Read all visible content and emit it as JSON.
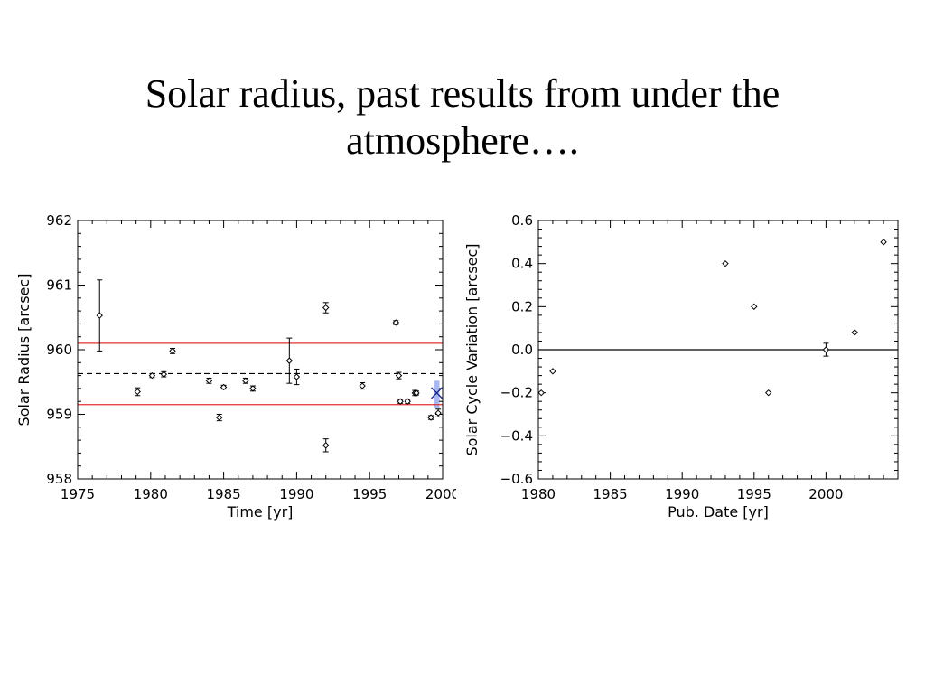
{
  "slide": {
    "title_line1": "Solar radius, past results from under the",
    "title_line2": "atmosphere…."
  },
  "chart_data": [
    {
      "type": "scatter",
      "title": "",
      "xlabel": "Time [yr]",
      "ylabel": "Solar Radius [arcsec]",
      "xlim": [
        1975,
        2000
      ],
      "ylim": [
        958,
        962
      ],
      "x_ticks": [
        1975,
        1980,
        1985,
        1990,
        1995,
        2000
      ],
      "x_tick_labels": [
        "1975",
        "1980",
        "1985",
        "1990",
        "1995",
        "2000"
      ],
      "y_ticks": [
        958,
        959,
        960,
        961,
        962
      ],
      "y_tick_labels": [
        "958",
        "959",
        "960",
        "961",
        "962"
      ],
      "grid": false,
      "reference_lines": [
        {
          "y": 960.1,
          "style": "solid",
          "color": "#e03030"
        },
        {
          "y": 959.63,
          "style": "dashed",
          "color": "#000000"
        },
        {
          "y": 959.15,
          "style": "solid",
          "color": "#e03030"
        }
      ],
      "highlight_point": {
        "x": 1999.6,
        "y": 959.33,
        "marker": "x",
        "color": "#1f2a8a",
        "band_color": "#a8b8f0",
        "band_y": [
          959.1,
          959.52
        ]
      },
      "series": [
        {
          "marker": "diamond",
          "points": [
            {
              "x": 1976.5,
              "y": 960.53,
              "err": 0.55
            },
            {
              "x": 1979.1,
              "y": 959.35,
              "err": 0.06
            },
            {
              "x": 1980.1,
              "y": 959.6,
              "err": 0.03
            },
            {
              "x": 1980.9,
              "y": 959.62,
              "err": 0.04
            },
            {
              "x": 1981.5,
              "y": 959.98,
              "err": 0.04
            },
            {
              "x": 1984.0,
              "y": 959.52,
              "err": 0.04
            },
            {
              "x": 1984.7,
              "y": 958.95,
              "err": 0.05
            },
            {
              "x": 1985.0,
              "y": 959.42,
              "err": 0.03
            },
            {
              "x": 1986.5,
              "y": 959.52,
              "err": 0.04
            },
            {
              "x": 1987.0,
              "y": 959.4,
              "err": 0.04
            },
            {
              "x": 1989.5,
              "y": 959.83,
              "err": 0.35
            },
            {
              "x": 1990.0,
              "y": 959.58,
              "err": 0.12
            },
            {
              "x": 1992.0,
              "y": 960.65,
              "err": 0.08
            },
            {
              "x": 1992.0,
              "y": 958.52,
              "err": 0.1
            },
            {
              "x": 1994.5,
              "y": 959.44,
              "err": 0.05
            },
            {
              "x": 1996.8,
              "y": 960.42,
              "err": 0.03
            },
            {
              "x": 1997.0,
              "y": 959.6,
              "err": 0.05
            },
            {
              "x": 1997.1,
              "y": 959.2,
              "err": 0.03
            },
            {
              "x": 1997.6,
              "y": 959.2,
              "err": 0.03
            },
            {
              "x": 1998.1,
              "y": 959.33,
              "err": 0.04
            },
            {
              "x": 1998.2,
              "y": 959.33,
              "err": 0.03
            },
            {
              "x": 1999.2,
              "y": 958.95,
              "err": 0.03
            },
            {
              "x": 1999.7,
              "y": 959.02,
              "err": 0.06
            }
          ]
        }
      ]
    },
    {
      "type": "scatter",
      "title": "",
      "xlabel": "Pub. Date [yr]",
      "ylabel": "Solar Cycle Variation [arcsec]",
      "xlim": [
        1980,
        2005
      ],
      "ylim": [
        -0.6,
        0.6
      ],
      "x_ticks": [
        1980,
        1985,
        1990,
        1995,
        2000
      ],
      "x_tick_labels": [
        "1980",
        "1985",
        "1990",
        "1995",
        "2000"
      ],
      "y_ticks": [
        -0.6,
        -0.4,
        -0.2,
        0.0,
        0.2,
        0.4,
        0.6
      ],
      "y_tick_labels": [
        "−0.6",
        "−0.4",
        "−0.2",
        "0.0",
        "0.2",
        "0.4",
        "0.6"
      ],
      "grid": false,
      "reference_lines": [
        {
          "y": 0.0,
          "style": "solid",
          "color": "#000000"
        }
      ],
      "series": [
        {
          "marker": "diamond",
          "points": [
            {
              "x": 1980.2,
              "y": -0.2,
              "err": 0
            },
            {
              "x": 1981.0,
              "y": -0.1,
              "err": 0
            },
            {
              "x": 1993.0,
              "y": 0.4,
              "err": 0
            },
            {
              "x": 1995.0,
              "y": 0.2,
              "err": 0
            },
            {
              "x": 1996.0,
              "y": -0.2,
              "err": 0
            },
            {
              "x": 2000.0,
              "y": 0.0,
              "err": 0.03
            },
            {
              "x": 2002.0,
              "y": 0.08,
              "err": 0
            },
            {
              "x": 2004.0,
              "y": 0.5,
              "err": 0
            }
          ]
        }
      ]
    }
  ]
}
